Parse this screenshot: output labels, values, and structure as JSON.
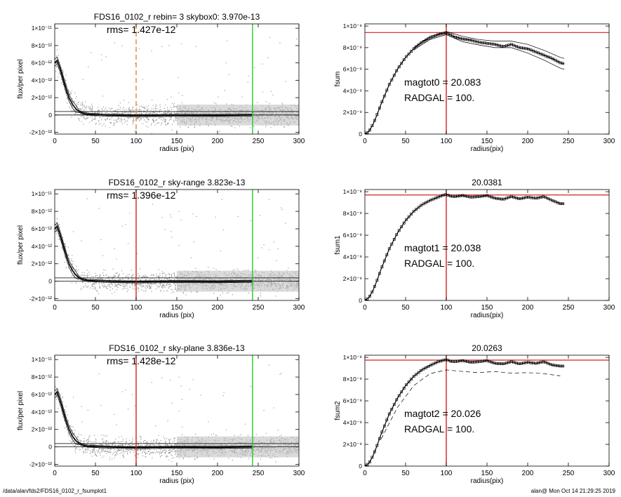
{
  "footer": {
    "left": "/data/alan/fds2/FDS16_0102_r_fsumplot1",
    "right": "alan@  Mon Oct 14 21:29:25 2019"
  },
  "colors": {
    "scatter": "#9a9a9a",
    "profile": "#000000",
    "orange_line": "#e8842a",
    "red_line": "#d62020",
    "green_line": "#22cc22"
  },
  "chart_data": [
    {
      "type": "scatter",
      "panel": "left-1",
      "title": "FDS16_0102_r rebin= 3    skybox0:  3.970e-13",
      "annotation": "rms= 1.427e-12",
      "xlabel": "radius (pix)",
      "ylabel": "flux/per pixel",
      "xlim": [
        0,
        300
      ],
      "ylim": [
        -2.2e-12,
        1.05e-11
      ],
      "xticks": [
        "0",
        "50",
        "100",
        "150",
        "200",
        "250",
        "300"
      ],
      "yticks": [
        "-2×10⁻¹²",
        "0",
        "2×10⁻¹²",
        "4×10⁻¹²",
        "6×10⁻¹²",
        "8×10⁻¹²",
        "1×10⁻¹¹"
      ],
      "ytick_values": [
        -2e-12,
        0,
        2e-12,
        4e-12,
        6e-12,
        8e-12,
        1e-11
      ],
      "vlines": [
        {
          "x": 100,
          "color": "orange",
          "style": "dashed"
        },
        {
          "x": 243,
          "color": "green",
          "style": "solid"
        }
      ],
      "hlines": [
        0,
        3.97e-13
      ],
      "profile": {
        "x": [
          0,
          3,
          6,
          9,
          12,
          15,
          18,
          22,
          26,
          30,
          35,
          40,
          50,
          60,
          80,
          100,
          150,
          200,
          243
        ],
        "y": [
          6e-12,
          6.3e-12,
          5.5e-12,
          4.6e-12,
          3.6e-12,
          2.7e-12,
          1.9e-12,
          1.2e-12,
          7e-13,
          4e-13,
          2e-13,
          1e-13,
          5e-14,
          0,
          -5e-14,
          -8e-14,
          -4e-14,
          -6e-14,
          0
        ]
      }
    },
    {
      "type": "line",
      "panel": "right-1",
      "title": "",
      "annotation": [
        "magtot0 =  20.083",
        "RADGAL =    100."
      ],
      "xlabel": "radius(pix)",
      "ylabel": "fsum",
      "xlim": [
        0,
        300
      ],
      "ylim": [
        0,
        1.02e-08
      ],
      "xticks": [
        "0",
        "50",
        "100",
        "150",
        "200",
        "250",
        "300"
      ],
      "yticks": [
        "0",
        "2×10⁻⁹",
        "4×10⁻⁹",
        "6×10⁻⁹",
        "8×10⁻⁹",
        "1×10⁻⁸"
      ],
      "ytick_values": [
        0,
        2e-09,
        4e-09,
        6e-09,
        8e-09,
        1e-08
      ],
      "vline": 100,
      "hline": 9.4e-09,
      "series": [
        {
          "x": [
            0,
            5,
            10,
            15,
            20,
            30,
            40,
            50,
            60,
            70,
            80,
            90,
            95,
            100,
            105,
            110,
            120,
            130,
            140,
            150,
            160,
            170,
            180,
            190,
            200,
            210,
            220,
            230,
            240,
            245
          ],
          "y": [
            0,
            2.5e-10,
            9e-10,
            1.8e-09,
            2.8e-09,
            4.6e-09,
            6e-09,
            7.1e-09,
            7.9e-09,
            8.5e-09,
            8.9e-09,
            9.2e-09,
            9.3e-09,
            9.35e-09,
            9.2e-09,
            9e-09,
            8.8e-09,
            8.7e-09,
            8.5e-09,
            8.4e-09,
            8.3e-09,
            8.1e-09,
            8.3e-09,
            8e-09,
            7.9e-09,
            7.6e-09,
            7.3e-09,
            7e-09,
            6.6e-09,
            6.5e-09
          ]
        },
        {
          "x": [
            60,
            80,
            100,
            120,
            140,
            160,
            180,
            200,
            220,
            240,
            245
          ],
          "y": [
            8e-09,
            9.05e-09,
            9.5e-09,
            9.05e-09,
            8.75e-09,
            8.6e-09,
            8.6e-09,
            8.3e-09,
            7.75e-09,
            7.1e-09,
            7e-09
          ]
        },
        {
          "x": [
            60,
            80,
            100,
            120,
            140,
            160,
            180,
            200,
            220,
            240,
            245
          ],
          "y": [
            7.8e-09,
            8.75e-09,
            9.2e-09,
            8.55e-09,
            8.25e-09,
            8e-09,
            8e-09,
            7.5e-09,
            6.85e-09,
            6.1e-09,
            6e-09
          ]
        }
      ]
    },
    {
      "type": "scatter",
      "panel": "left-2",
      "title": "FDS16_0102_r sky-range  3.823e-13",
      "annotation": "rms= 1.396e-12",
      "xlabel": "radius (pix)",
      "ylabel": "flux/per pixel",
      "xlim": [
        0,
        300
      ],
      "ylim": [
        -2.2e-12,
        1.05e-11
      ],
      "xticks": [
        "0",
        "50",
        "100",
        "150",
        "200",
        "250",
        "300"
      ],
      "yticks": [
        "-2×10⁻¹²",
        "0",
        "2×10⁻¹²",
        "4×10⁻¹²",
        "6×10⁻¹²",
        "8×10⁻¹²",
        "1×10⁻¹¹"
      ],
      "ytick_values": [
        -2e-12,
        0,
        2e-12,
        4e-12,
        6e-12,
        8e-12,
        1e-11
      ],
      "vlines": [
        {
          "x": 100,
          "color": "red",
          "style": "solid"
        },
        {
          "x": 243,
          "color": "green",
          "style": "solid"
        }
      ],
      "hlines": [
        0,
        3.82e-13
      ],
      "profile": {
        "x": [
          0,
          3,
          6,
          9,
          12,
          15,
          18,
          22,
          26,
          30,
          35,
          40,
          50,
          60,
          80,
          100,
          150,
          200,
          243
        ],
        "y": [
          6e-12,
          6.3e-12,
          5.5e-12,
          4.6e-12,
          3.6e-12,
          2.7e-12,
          1.9e-12,
          1.2e-12,
          7e-13,
          4e-13,
          2e-13,
          1e-13,
          5e-14,
          0,
          -5e-14,
          -8e-14,
          -4e-14,
          -6e-14,
          0
        ]
      }
    },
    {
      "type": "line",
      "panel": "right-2",
      "title": "20.0381",
      "annotation": [
        "magtot1 =  20.038",
        "RADGAL =    100."
      ],
      "xlabel": "radius(pix)",
      "ylabel": "fsum1",
      "xlim": [
        0,
        300
      ],
      "ylim": [
        0,
        1.02e-08
      ],
      "xticks": [
        "0",
        "50",
        "100",
        "150",
        "200",
        "250",
        "300"
      ],
      "yticks": [
        "0",
        "2×10⁻⁹",
        "4×10⁻⁹",
        "6×10⁻⁹",
        "8×10⁻⁹",
        "1×10⁻⁸"
      ],
      "ytick_values": [
        0,
        2e-09,
        4e-09,
        6e-09,
        8e-09,
        1e-08
      ],
      "vline": 100,
      "hline": 9.7e-09,
      "series": [
        {
          "x": [
            0,
            5,
            10,
            15,
            20,
            30,
            40,
            50,
            60,
            70,
            80,
            90,
            95,
            100,
            105,
            110,
            120,
            130,
            140,
            150,
            160,
            170,
            180,
            190,
            200,
            210,
            220,
            230,
            240,
            245
          ],
          "y": [
            0,
            2.6e-10,
            9.3e-10,
            1.85e-09,
            2.9e-09,
            4.75e-09,
            6.2e-09,
            7.35e-09,
            8.2e-09,
            8.8e-09,
            9.2e-09,
            9.5e-09,
            9.65e-09,
            9.75e-09,
            9.6e-09,
            9.55e-09,
            9.65e-09,
            9.5e-09,
            9.55e-09,
            9.65e-09,
            9.4e-09,
            9.3e-09,
            9.55e-09,
            9.35e-09,
            9.5e-09,
            9.4e-09,
            9.55e-09,
            9.2e-09,
            8.9e-09,
            8.9e-09
          ]
        }
      ]
    },
    {
      "type": "scatter",
      "panel": "left-3",
      "title": "FDS16_0102_r sky-plane  3.836e-13",
      "annotation": "rms= 1.428e-12",
      "xlabel": "radius (pix)",
      "ylabel": "flux/per pixel",
      "xlim": [
        0,
        300
      ],
      "ylim": [
        -2.2e-12,
        1.05e-11
      ],
      "xticks": [
        "0",
        "50",
        "100",
        "150",
        "200",
        "250",
        "300"
      ],
      "yticks": [
        "-2×10⁻¹²",
        "0",
        "2×10⁻¹²",
        "4×10⁻¹²",
        "6×10⁻¹²",
        "8×10⁻¹²",
        "1×10⁻¹¹"
      ],
      "ytick_values": [
        -2e-12,
        0,
        2e-12,
        4e-12,
        6e-12,
        8e-12,
        1e-11
      ],
      "vlines": [
        {
          "x": 100,
          "color": "red",
          "style": "solid"
        },
        {
          "x": 243,
          "color": "green",
          "style": "solid"
        }
      ],
      "hlines": [
        0,
        3.84e-13
      ],
      "profile": {
        "x": [
          0,
          3,
          6,
          9,
          12,
          15,
          18,
          22,
          26,
          30,
          35,
          40,
          50,
          60,
          80,
          100,
          150,
          200,
          243
        ],
        "y": [
          6e-12,
          6.3e-12,
          5.5e-12,
          4.6e-12,
          3.6e-12,
          2.7e-12,
          1.9e-12,
          1.2e-12,
          7e-13,
          4e-13,
          2e-13,
          1e-13,
          5e-14,
          0,
          -5e-14,
          -8e-14,
          -4e-14,
          -6e-14,
          0
        ]
      }
    },
    {
      "type": "line",
      "panel": "right-3",
      "title": "20.0263",
      "annotation": [
        "magtot2 =  20.026",
        "RADGAL =    100."
      ],
      "xlabel": "radius(pix)",
      "ylabel": "fsum2",
      "xlim": [
        0,
        300
      ],
      "ylim": [
        0,
        1.02e-08
      ],
      "xticks": [
        "0",
        "50",
        "100",
        "150",
        "200",
        "250",
        "300"
      ],
      "yticks": [
        "0",
        "2×10⁻⁹",
        "4×10⁻⁹",
        "6×10⁻⁹",
        "8×10⁻⁹",
        "1×10⁻⁸"
      ],
      "ytick_values": [
        0,
        2e-09,
        4e-09,
        6e-09,
        8e-09,
        1e-08
      ],
      "vline": 100,
      "hline": 9.75e-09,
      "series": [
        {
          "x": [
            0,
            5,
            10,
            15,
            20,
            30,
            40,
            50,
            60,
            70,
            80,
            90,
            95,
            100,
            105,
            110,
            120,
            130,
            140,
            150,
            160,
            170,
            180,
            190,
            200,
            210,
            220,
            230,
            240,
            245
          ],
          "y": [
            0,
            2.6e-10,
            9.4e-10,
            1.9e-09,
            2.95e-09,
            4.8e-09,
            6.25e-09,
            7.4e-09,
            8.25e-09,
            8.85e-09,
            9.25e-09,
            9.6e-09,
            9.7e-09,
            9.8e-09,
            9.65e-09,
            9.6e-09,
            9.7e-09,
            9.55e-09,
            9.6e-09,
            9.7e-09,
            9.45e-09,
            9.4e-09,
            9.6e-09,
            9.4e-09,
            9.55e-09,
            9.45e-09,
            9.6e-09,
            9.3e-09,
            9.2e-09,
            9.2e-09
          ]
        },
        {
          "x": [
            20,
            40,
            60,
            80,
            100,
            120,
            140,
            160,
            180,
            200,
            220,
            240
          ],
          "y": [
            2.5e-09,
            5.4e-09,
            7.4e-09,
            8.5e-09,
            8.85e-09,
            8.7e-09,
            8.6e-09,
            8.7e-09,
            8.55e-09,
            8.6e-09,
            8.5e-09,
            8.3e-09
          ],
          "style": "dashed"
        }
      ]
    }
  ]
}
